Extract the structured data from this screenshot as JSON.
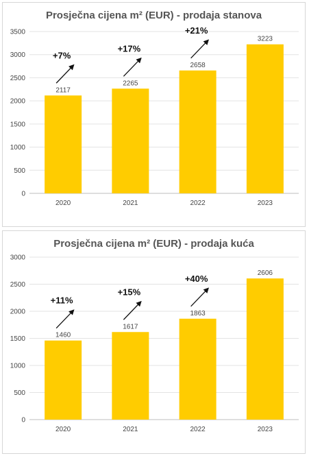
{
  "chart_data": [
    {
      "type": "bar",
      "title": "Prosječna cijena m² (EUR) - prodaja stanova",
      "categories": [
        "2020",
        "2021",
        "2022",
        "2023"
      ],
      "values": [
        2117,
        2265,
        2658,
        3223
      ],
      "data_labels": [
        "2117",
        "2265",
        "2658",
        "3223"
      ],
      "growth_annotations": [
        "+7%",
        "+17%",
        "+21%",
        ""
      ],
      "ylim": [
        0,
        3500
      ],
      "yticks": [
        0,
        500,
        1000,
        1500,
        2000,
        2500,
        3000,
        3500
      ],
      "ytick_labels": [
        "0",
        "500",
        "1000",
        "1500",
        "2000",
        "2500",
        "3000",
        "3500"
      ],
      "bar_color": "#FFCC00",
      "grid": true,
      "legend": "none"
    },
    {
      "type": "bar",
      "title": "Prosječna cijena m² (EUR) - prodaja kuća",
      "categories": [
        "2020",
        "2021",
        "2022",
        "2023"
      ],
      "values": [
        1460,
        1617,
        1863,
        2606
      ],
      "data_labels": [
        "1460",
        "1617",
        "1863",
        "2606"
      ],
      "growth_annotations": [
        "+11%",
        "+15%",
        "+40%",
        ""
      ],
      "ylim": [
        0,
        3000
      ],
      "yticks": [
        0,
        500,
        1000,
        1500,
        2000,
        2500,
        3000
      ],
      "ytick_labels": [
        "0",
        "500",
        "1000",
        "1500",
        "2000",
        "2500",
        "3000"
      ],
      "bar_color": "#FFCC00",
      "grid": true,
      "legend": "none"
    }
  ]
}
